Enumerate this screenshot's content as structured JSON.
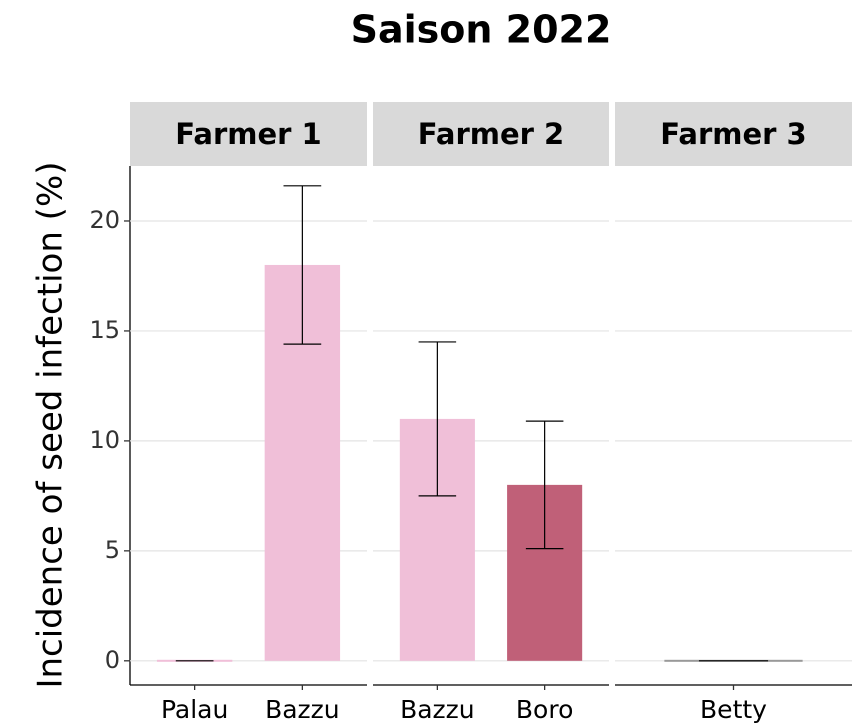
{
  "chart_data": {
    "type": "bar",
    "title": "Saison 2022",
    "y_label": "Incidence of seed infection (%)",
    "ylim": [
      -1.1,
      22.5
    ],
    "yticks": [
      0,
      5,
      10,
      15,
      20
    ],
    "grid": true,
    "facets": [
      {
        "name": "Farmer 1",
        "categories": [
          "Palau",
          "Bazzu"
        ],
        "values": [
          0,
          18
        ],
        "errors": [
          0,
          3.6
        ],
        "colors": [
          "#f0bfd8",
          "#f0bfd8"
        ]
      },
      {
        "name": "Farmer 2",
        "categories": [
          "Bazzu",
          "Boro"
        ],
        "values": [
          11,
          8
        ],
        "errors": [
          3.5,
          2.9
        ],
        "colors": [
          "#f0bfd8",
          "#c06078"
        ]
      },
      {
        "name": "Farmer 3",
        "categories": [
          "Betty"
        ],
        "values": [
          0
        ],
        "errors": [
          0
        ],
        "colors": [
          "#999999"
        ]
      }
    ]
  }
}
